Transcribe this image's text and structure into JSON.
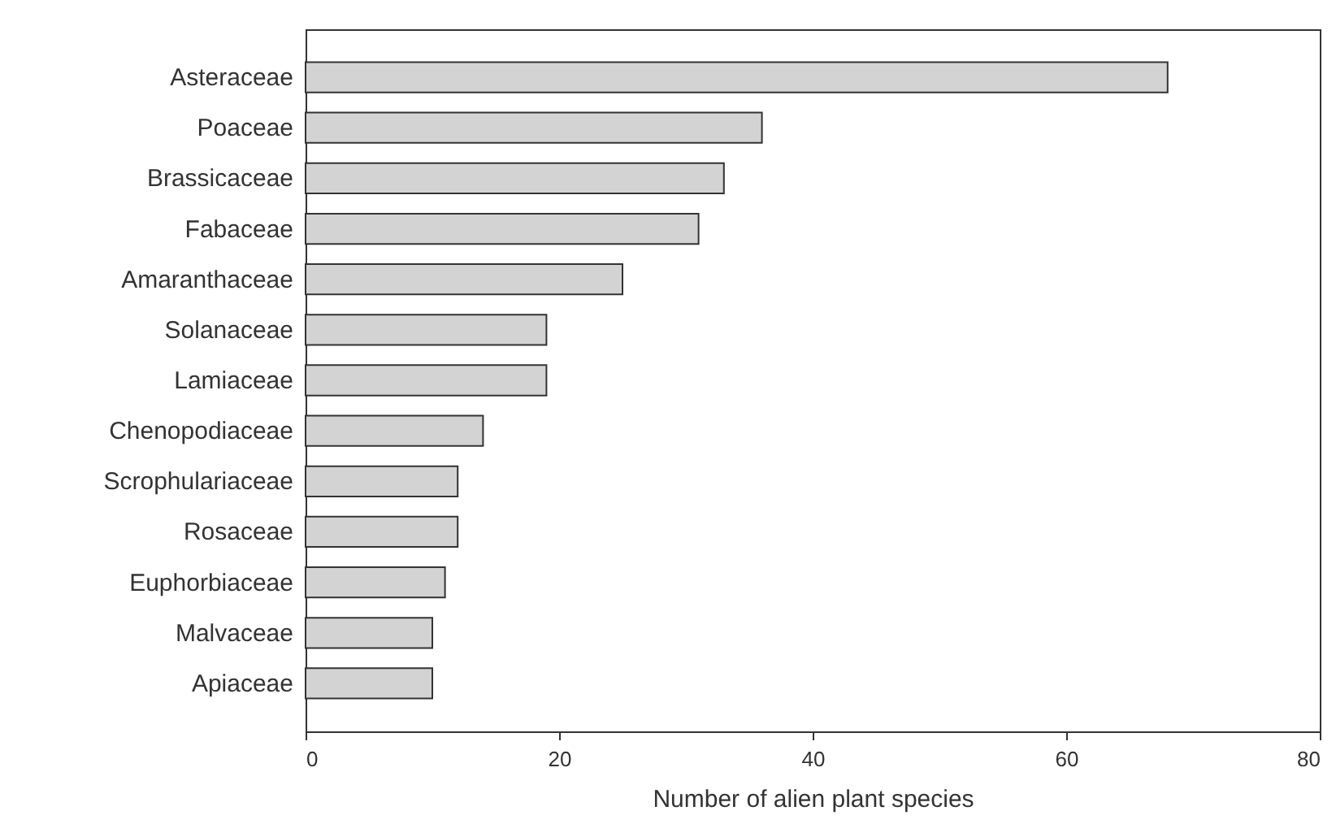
{
  "chart_data": {
    "type": "bar",
    "orientation": "horizontal",
    "xlabel": "Number of alien plant species",
    "categories": [
      "Asteraceae",
      "Poaceae",
      "Brassicaceae",
      "Fabaceae",
      "Amaranthaceae",
      "Solanaceae",
      "Lamiaceae",
      "Chenopodiaceae",
      "Scrophulariaceae",
      "Rosaceae",
      "Euphorbiaceae",
      "Malvaceae",
      "Apiaceae"
    ],
    "values": [
      68,
      36,
      33,
      31,
      25,
      19,
      19,
      14,
      12,
      12,
      11,
      10,
      10
    ],
    "color": "#d3d3d3",
    "xlim": [
      0,
      80
    ],
    "xticks": [
      0,
      20,
      40,
      60,
      80
    ],
    "grid": false
  }
}
